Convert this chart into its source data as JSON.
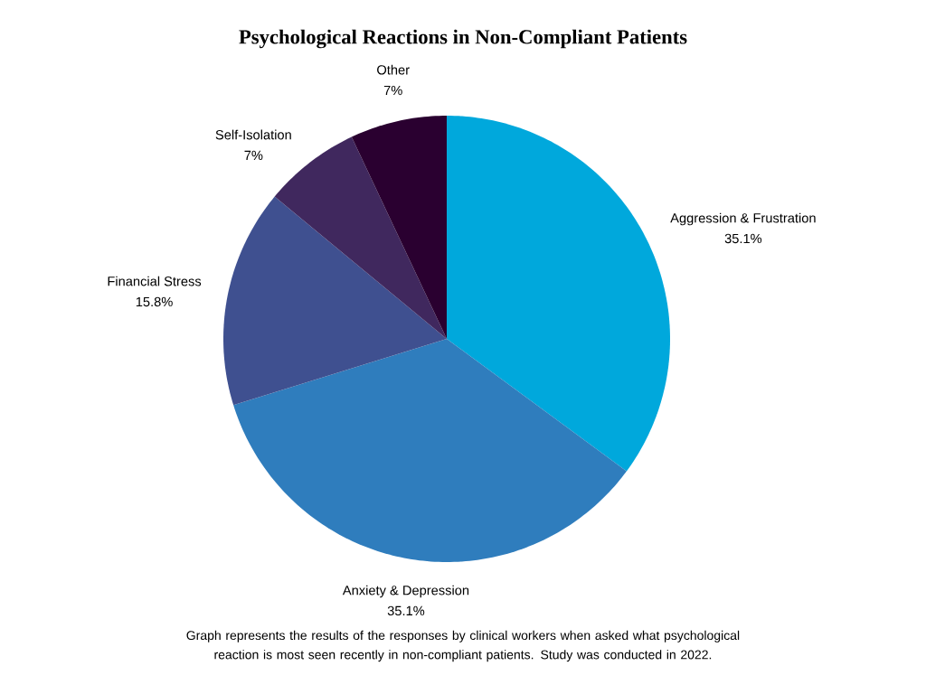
{
  "chart_data": {
    "type": "pie",
    "title": "Psychological Reactions in Non-Compliant Patients",
    "categories": [
      "Aggression & Frustration",
      "Anxiety & Depression",
      "Financial Stress",
      "Self-Isolation",
      "Other"
    ],
    "values": [
      35.1,
      35.1,
      15.8,
      7,
      7
    ],
    "value_labels": [
      "35.1%",
      "35.1%",
      "15.8%",
      "7%",
      "7%"
    ],
    "colors": [
      "#00a8dc",
      "#2f7dbd",
      "#3f5090",
      "#40285e",
      "#2a0030"
    ],
    "annotations": [
      "Graph represents the results of the responses by clinical workers when asked what psychological reaction is most seen recently in non-compliant patients. Study was conducted in 2022."
    ]
  }
}
